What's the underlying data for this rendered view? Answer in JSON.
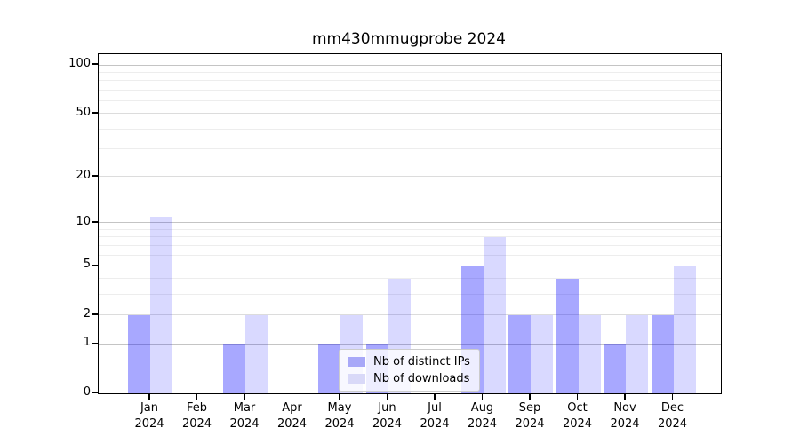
{
  "chart_data": {
    "type": "bar",
    "title": "mm430mmugprobe 2024",
    "categories": [
      "Jan",
      "Feb",
      "Mar",
      "Apr",
      "May",
      "Jun",
      "Jul",
      "Aug",
      "Sep",
      "Oct",
      "Nov",
      "Dec"
    ],
    "year_label": "2024",
    "series": [
      {
        "name": "Nb of distinct IPs",
        "color": "rgba(0,0,255,0.34)",
        "swatch_color": "#a8a8f8",
        "values": [
          2,
          0,
          1,
          0,
          1,
          1,
          0,
          5,
          2,
          4,
          1,
          2
        ]
      },
      {
        "name": "Nb of downloads",
        "color": "rgba(0,0,255,0.15)",
        "swatch_color": "#d9d9f8",
        "values": [
          11,
          0,
          2,
          0,
          2,
          4,
          0,
          8,
          2,
          2,
          2,
          5
        ]
      }
    ],
    "y_axis": {
      "scale": "log1p",
      "ticks": [
        0,
        1,
        2,
        5,
        10,
        20,
        50,
        100
      ],
      "decade_ticks": [
        1,
        10,
        100
      ],
      "minor_ticks": [
        3,
        4,
        6,
        7,
        8,
        9,
        30,
        40,
        60,
        70,
        80,
        90
      ],
      "max": 100
    },
    "legend": {
      "position": "lower center"
    },
    "grid": "on"
  }
}
